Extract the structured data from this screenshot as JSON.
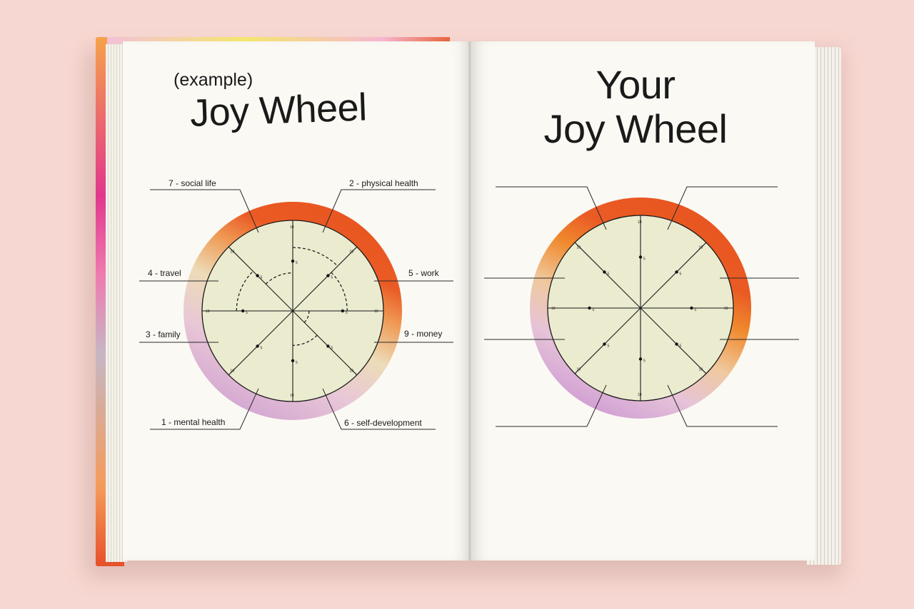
{
  "left_page": {
    "subtitle": "(example)",
    "title": "Joy Wheel",
    "labels": {
      "social": "7 - social life",
      "physical": "2 - physical health",
      "travel": "4 - travel",
      "work": "5 - work",
      "family": "3 - family",
      "money": "9 - money",
      "mental": "1 - mental health",
      "selfdev": "6 - self-development"
    }
  },
  "right_page": {
    "title_line1": "Your",
    "title_line2": "Joy Wheel"
  },
  "wheel": {
    "scale_mid": "5",
    "scale_max": "10",
    "ring_colors": [
      "#ea5b24",
      "#f08a2e",
      "#cda1cf",
      "#f2d6b0"
    ],
    "fill_color": "#ebebd0"
  }
}
